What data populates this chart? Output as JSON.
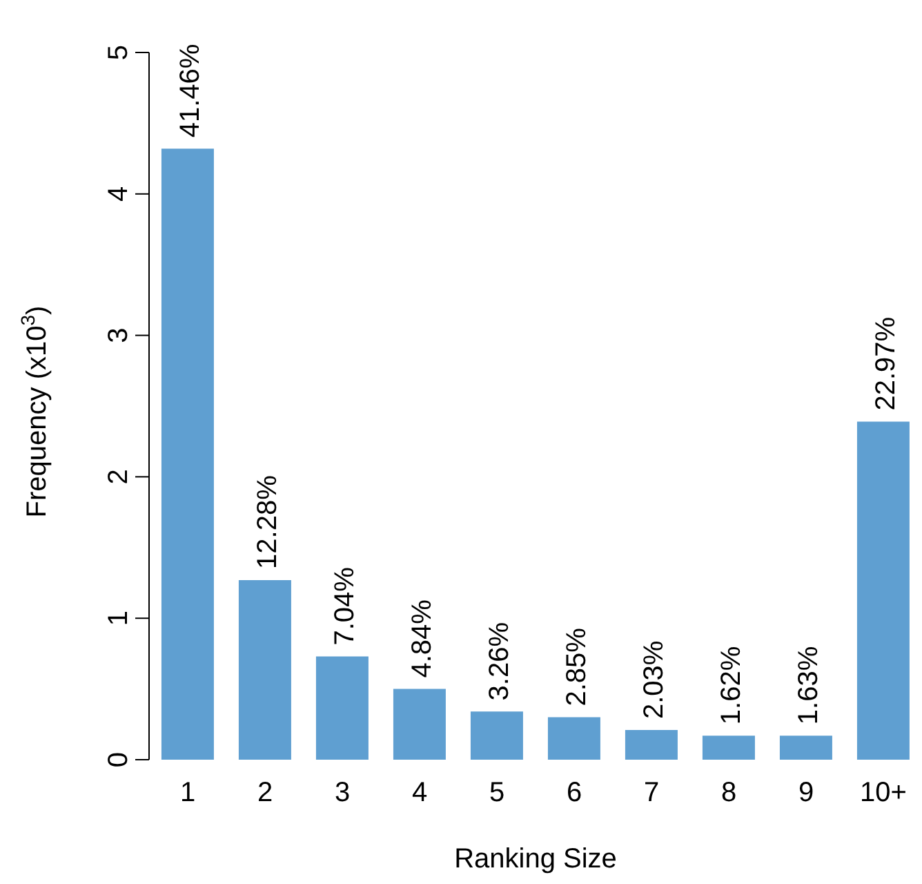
{
  "chart_data": {
    "type": "bar",
    "xlabel": "Ranking Size",
    "ylabel": "Frequency (x10$^{3}$)",
    "categories": [
      "1",
      "2",
      "3",
      "4",
      "5",
      "6",
      "7",
      "8",
      "9",
      "10+"
    ],
    "values": [
      4.32,
      1.27,
      0.73,
      0.5,
      0.34,
      0.3,
      0.21,
      0.17,
      0.17,
      2.39
    ],
    "annotations": [
      {
        "text": "41.46%",
        "x": "1",
        "y": 4.32
      },
      {
        "text": "12.28%",
        "x": "2",
        "y": 1.27
      },
      {
        "text": "7.04%",
        "x": "3",
        "y": 0.73
      },
      {
        "text": "4.84%",
        "x": "4",
        "y": 0.5
      },
      {
        "text": "3.26%",
        "x": "5",
        "y": 0.34
      },
      {
        "text": "2.85%",
        "x": "6",
        "y": 0.3
      },
      {
        "text": "2.03%",
        "x": "7",
        "y": 0.21
      },
      {
        "text": "1.62%",
        "x": "8",
        "y": 0.17
      },
      {
        "text": "1.63%",
        "x": "9",
        "y": 0.17
      },
      {
        "text": "22.97%",
        "x": "10+",
        "y": 2.39
      }
    ],
    "color": "#5f9fd1",
    "ylim": [
      0,
      5
    ],
    "yticks": [
      0,
      1,
      2,
      3,
      4,
      5
    ],
    "grid": false,
    "legend": false
  }
}
